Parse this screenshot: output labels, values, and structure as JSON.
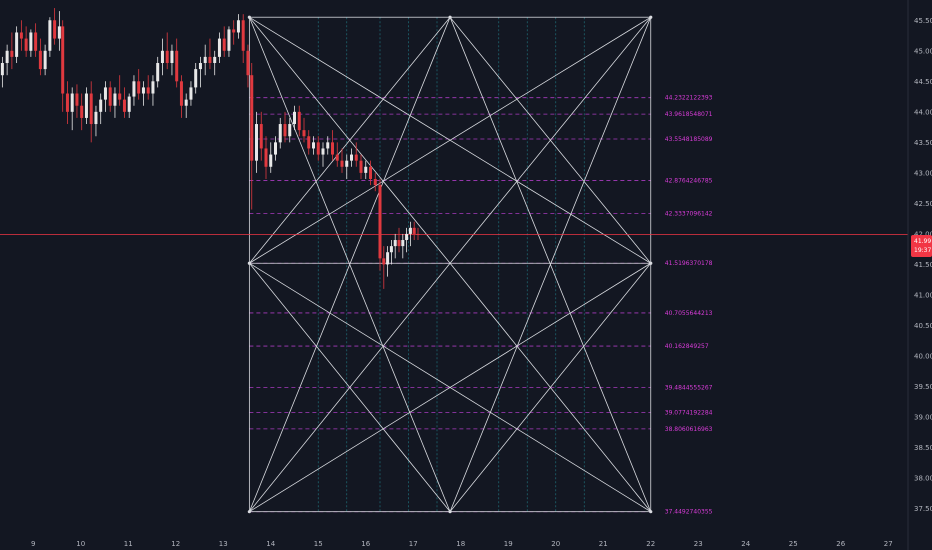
{
  "chart_data": {
    "type": "candlestick",
    "title": "",
    "x_ticks": [
      "9",
      "10",
      "11",
      "12",
      "13",
      "14",
      "15",
      "16",
      "17",
      "18",
      "19",
      "20",
      "21",
      "22",
      "23",
      "24",
      "25",
      "26",
      "27"
    ],
    "x_range": [
      8.3,
      27.0
    ],
    "y_ticks": [
      "45.50",
      "45.00",
      "44.50",
      "44.00",
      "43.50",
      "43.00",
      "42.50",
      "42.00",
      "41.50",
      "41.00",
      "40.50",
      "40.00",
      "39.50",
      "39.00",
      "38.50",
      "38.00",
      "37.50"
    ],
    "y_range": [
      37.15,
      45.75
    ],
    "price_tag": {
      "price": "41.99",
      "countdown": "19:37",
      "value": 41.99
    },
    "gann_box": {
      "x_start": 13.55,
      "x_end": 22.0,
      "y_top": 45.55,
      "y_mid": 41.52,
      "y_bottom": 37.45,
      "levels": [
        {
          "label": "44.2322122393",
          "value": 44.232
        },
        {
          "label": "43.9618548071",
          "value": 43.962
        },
        {
          "label": "43.5548185089",
          "value": 43.555
        },
        {
          "label": "42.8764246785",
          "value": 42.876
        },
        {
          "label": "42.3337096142",
          "value": 42.334
        },
        {
          "label": "41.5196370178",
          "value": 41.52
        },
        {
          "label": "40.7055644213",
          "value": 40.706
        },
        {
          "label": "40.162849257",
          "value": 40.163
        },
        {
          "label": "39.4844555267",
          "value": 39.484
        },
        {
          "label": "39.0774192284",
          "value": 39.077
        },
        {
          "label": "38.8060616963",
          "value": 38.806
        },
        {
          "label": "37.4492740355",
          "value": 37.449
        }
      ],
      "vertical_dividers": [
        15.0,
        15.6,
        16.3,
        16.9,
        17.5,
        18.8,
        19.4,
        20.0,
        20.6
      ]
    },
    "candles": [
      [
        8.35,
        44.6,
        44.9,
        44.4,
        44.8
      ],
      [
        8.45,
        44.8,
        45.1,
        44.6,
        45.0
      ],
      [
        8.55,
        45.0,
        45.3,
        44.7,
        44.9
      ],
      [
        8.65,
        44.9,
        45.4,
        44.8,
        45.3
      ],
      [
        8.75,
        45.3,
        45.5,
        45.0,
        45.2
      ],
      [
        8.85,
        45.2,
        45.4,
        44.9,
        45.0
      ],
      [
        8.95,
        45.0,
        45.35,
        44.9,
        45.3
      ],
      [
        9.05,
        45.3,
        45.45,
        44.9,
        45.0
      ],
      [
        9.15,
        45.0,
        45.2,
        44.6,
        44.7
      ],
      [
        9.25,
        44.7,
        45.1,
        44.6,
        45.0
      ],
      [
        9.35,
        45.0,
        45.55,
        44.9,
        45.5
      ],
      [
        9.45,
        45.5,
        45.7,
        45.1,
        45.2
      ],
      [
        9.55,
        45.2,
        45.65,
        45.0,
        45.4
      ],
      [
        9.62,
        45.4,
        45.5,
        44.0,
        44.3
      ],
      [
        9.72,
        44.3,
        44.5,
        43.8,
        44.0
      ],
      [
        9.82,
        44.0,
        44.4,
        43.7,
        44.3
      ],
      [
        9.92,
        44.3,
        44.45,
        43.9,
        44.1
      ],
      [
        10.02,
        44.1,
        44.3,
        43.7,
        43.9
      ],
      [
        10.12,
        43.9,
        44.4,
        43.8,
        44.3
      ],
      [
        10.22,
        44.3,
        44.5,
        43.5,
        43.8
      ],
      [
        10.32,
        43.8,
        44.1,
        43.6,
        44.0
      ],
      [
        10.42,
        44.0,
        44.3,
        43.8,
        44.2
      ],
      [
        10.52,
        44.2,
        44.5,
        44.0,
        44.4
      ],
      [
        10.62,
        44.4,
        44.5,
        44.0,
        44.1
      ],
      [
        10.72,
        44.1,
        44.4,
        43.9,
        44.3
      ],
      [
        10.82,
        44.3,
        44.6,
        44.1,
        44.2
      ],
      [
        10.92,
        44.2,
        44.4,
        43.9,
        44.0
      ],
      [
        11.02,
        44.0,
        44.3,
        43.9,
        44.25
      ],
      [
        11.12,
        44.25,
        44.6,
        44.1,
        44.5
      ],
      [
        11.22,
        44.5,
        44.7,
        44.2,
        44.3
      ],
      [
        11.32,
        44.3,
        44.5,
        44.1,
        44.4
      ],
      [
        11.42,
        44.4,
        44.6,
        44.2,
        44.3
      ],
      [
        11.52,
        44.3,
        44.6,
        44.1,
        44.5
      ],
      [
        11.62,
        44.5,
        44.9,
        44.4,
        44.8
      ],
      [
        11.72,
        44.8,
        45.2,
        44.6,
        45.0
      ],
      [
        11.82,
        45.0,
        45.3,
        44.7,
        44.8
      ],
      [
        11.92,
        44.8,
        45.1,
        44.6,
        45.0
      ],
      [
        12.02,
        45.0,
        45.2,
        44.4,
        44.5
      ],
      [
        12.12,
        44.5,
        44.6,
        43.9,
        44.1
      ],
      [
        12.22,
        44.1,
        44.3,
        43.9,
        44.2
      ],
      [
        12.32,
        44.2,
        44.5,
        44.1,
        44.4
      ],
      [
        12.42,
        44.4,
        44.8,
        44.3,
        44.7
      ],
      [
        12.52,
        44.7,
        44.9,
        44.4,
        44.8
      ],
      [
        12.62,
        44.8,
        45.1,
        44.6,
        44.9
      ],
      [
        12.72,
        44.9,
        45.2,
        44.7,
        44.8
      ],
      [
        12.82,
        44.8,
        45.0,
        44.6,
        44.9
      ],
      [
        12.92,
        44.9,
        45.3,
        44.8,
        45.2
      ],
      [
        13.02,
        45.2,
        45.4,
        44.9,
        45.0
      ],
      [
        13.12,
        45.0,
        45.4,
        44.9,
        45.35
      ],
      [
        13.22,
        45.35,
        45.5,
        45.1,
        45.3
      ],
      [
        13.32,
        45.3,
        45.6,
        45.2,
        45.5
      ],
      [
        13.42,
        45.5,
        45.6,
        44.8,
        45.0
      ],
      [
        13.52,
        45.0,
        45.1,
        44.4,
        44.6
      ],
      [
        13.6,
        44.6,
        44.8,
        42.4,
        43.2
      ],
      [
        13.7,
        43.2,
        44.0,
        43.0,
        43.8
      ],
      [
        13.8,
        43.8,
        44.0,
        43.2,
        43.4
      ],
      [
        13.9,
        43.4,
        43.6,
        42.9,
        43.1
      ],
      [
        14.0,
        43.1,
        43.5,
        43.0,
        43.3
      ],
      [
        14.1,
        43.3,
        43.6,
        43.2,
        43.5
      ],
      [
        14.2,
        43.5,
        43.9,
        43.4,
        43.8
      ],
      [
        14.3,
        43.8,
        44.0,
        43.5,
        43.6
      ],
      [
        14.4,
        43.6,
        43.9,
        43.5,
        43.8
      ],
      [
        14.5,
        43.8,
        44.1,
        43.7,
        44.0
      ],
      [
        14.6,
        44.0,
        44.1,
        43.6,
        43.7
      ],
      [
        14.7,
        43.7,
        43.9,
        43.5,
        43.6
      ],
      [
        14.8,
        43.6,
        43.7,
        43.3,
        43.4
      ],
      [
        14.9,
        43.4,
        43.6,
        43.3,
        43.5
      ],
      [
        15.0,
        43.5,
        43.6,
        43.2,
        43.3
      ],
      [
        15.1,
        43.3,
        43.5,
        43.1,
        43.4
      ],
      [
        15.2,
        43.4,
        43.6,
        43.3,
        43.5
      ],
      [
        15.3,
        43.5,
        43.7,
        43.2,
        43.3
      ],
      [
        15.4,
        43.3,
        43.5,
        43.1,
        43.2
      ],
      [
        15.5,
        43.2,
        43.4,
        43.0,
        43.1
      ],
      [
        15.6,
        43.1,
        43.3,
        42.9,
        43.2
      ],
      [
        15.7,
        43.2,
        43.4,
        43.1,
        43.3
      ],
      [
        15.8,
        43.3,
        43.5,
        43.1,
        43.2
      ],
      [
        15.9,
        43.2,
        43.3,
        42.9,
        43.0
      ],
      [
        16.0,
        43.0,
        43.2,
        42.9,
        43.1
      ],
      [
        16.1,
        43.1,
        43.2,
        42.8,
        42.9
      ],
      [
        16.2,
        42.9,
        43.0,
        42.7,
        42.8
      ],
      [
        16.3,
        42.8,
        42.9,
        41.4,
        41.6
      ],
      [
        16.38,
        41.6,
        41.8,
        41.1,
        41.5
      ],
      [
        16.46,
        41.5,
        41.8,
        41.3,
        41.7
      ],
      [
        16.54,
        41.7,
        41.9,
        41.5,
        41.8
      ],
      [
        16.62,
        41.8,
        42.0,
        41.6,
        41.9
      ],
      [
        16.7,
        41.9,
        42.1,
        41.7,
        41.8
      ],
      [
        16.78,
        41.8,
        42.0,
        41.6,
        41.9
      ],
      [
        16.86,
        41.9,
        42.1,
        41.7,
        42.0
      ],
      [
        16.94,
        42.0,
        42.2,
        41.8,
        42.1
      ],
      [
        17.02,
        42.1,
        42.2,
        41.9,
        42.0
      ],
      [
        17.1,
        42.0,
        42.1,
        41.9,
        41.99
      ]
    ]
  }
}
